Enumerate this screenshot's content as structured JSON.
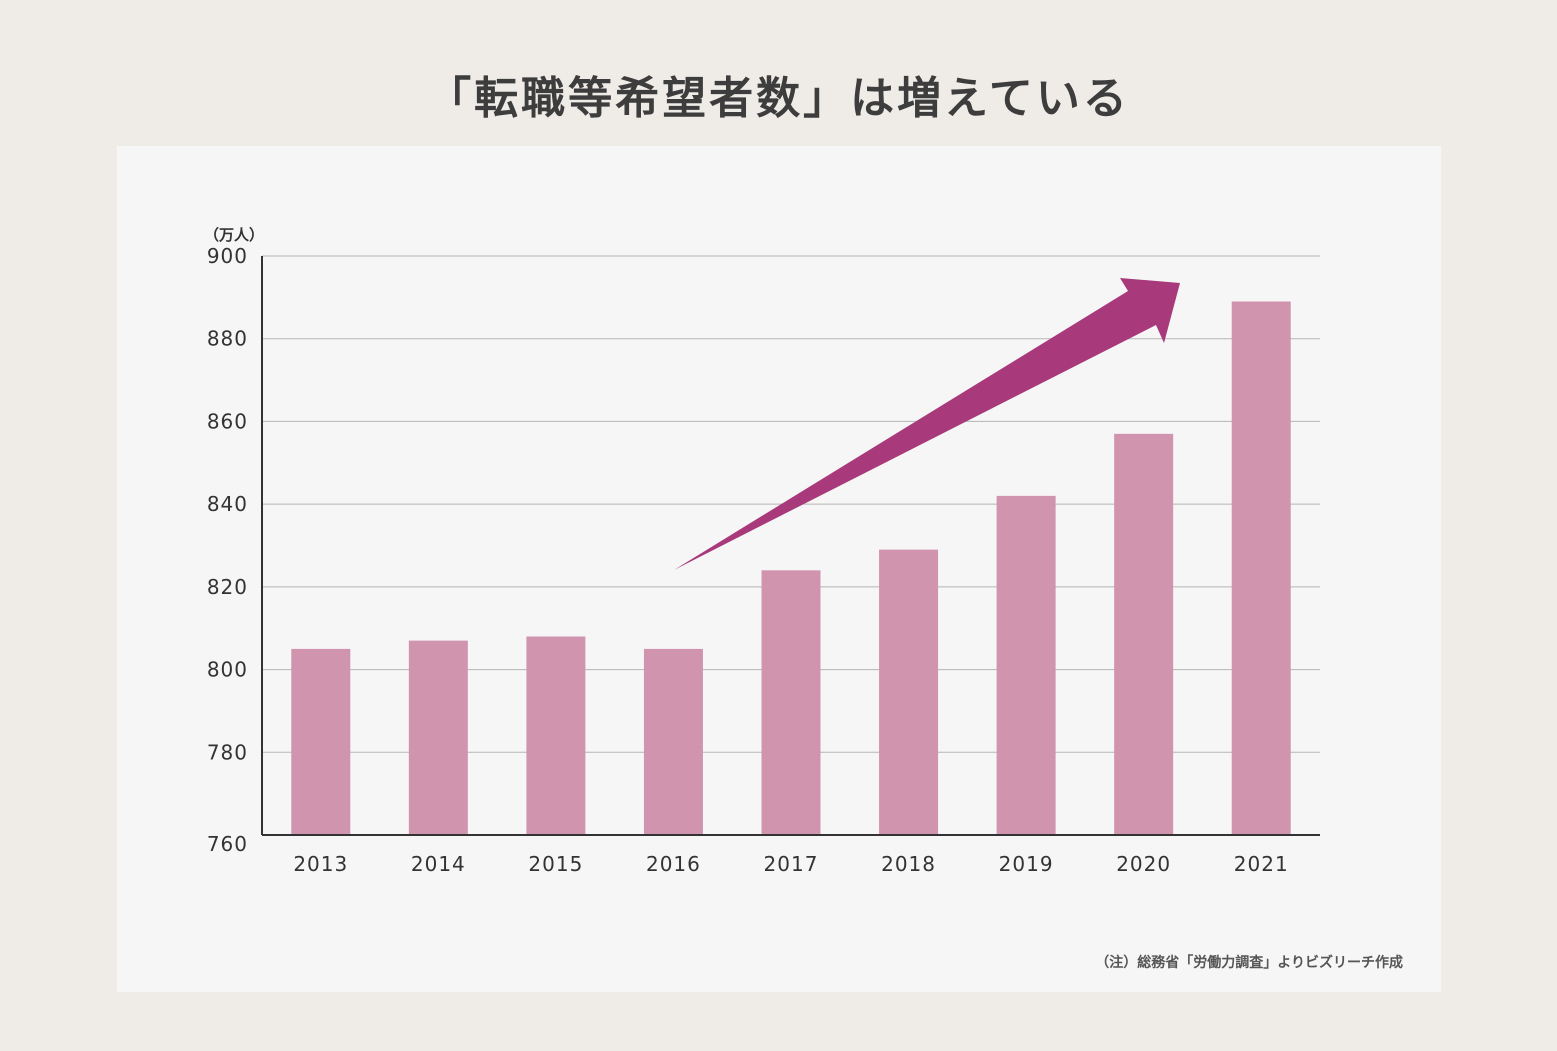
{
  "title": "「転職等希望者数」は増えている",
  "chart_data": {
    "type": "bar",
    "title": "「転職等希望者数」は増えている",
    "unit_label": "（万人）",
    "categories": [
      "2013",
      "2014",
      "2015",
      "2016",
      "2017",
      "2018",
      "2019",
      "2020",
      "2021"
    ],
    "values": [
      805,
      807,
      808,
      805,
      824,
      829,
      842,
      857,
      889
    ],
    "ylim": [
      760,
      900
    ],
    "yticks": [
      760,
      780,
      800,
      820,
      840,
      860,
      880,
      900
    ],
    "grid": true,
    "annotation": "upward-trend-arrow",
    "colors": {
      "bar": "#d194ae",
      "arrow": "#a8397a",
      "grid": "#b5b5b5",
      "axis": "#333333"
    }
  },
  "note": "（注）総務省「労働力調査」よりビズリーチ作成"
}
